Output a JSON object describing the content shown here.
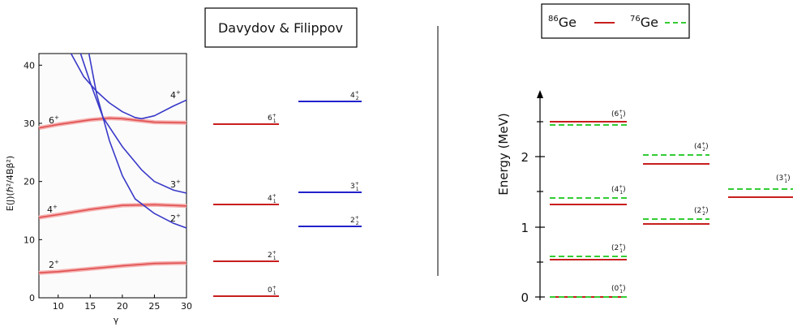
{
  "left_panel": {
    "title": "Davydov & Filippov",
    "y_axis_label": "E(J)(ℏ²/4Bβ²)",
    "x_axis_label": "γ",
    "y_ticks": [
      "0",
      "10",
      "20",
      "30",
      "40"
    ],
    "x_ticks": [
      "10",
      "15",
      "20",
      "25",
      "30"
    ],
    "curve_labels": {
      "c2": {
        "base": "2",
        "sup": "+"
      },
      "c4": {
        "base": "4",
        "sup": "+"
      },
      "c6": {
        "base": "6",
        "sup": "+"
      },
      "c3": {
        "base": "3",
        "sup": "+"
      },
      "c2b": {
        "base": "2",
        "sup": "+"
      },
      "c4b": {
        "base": "4",
        "sup": "+"
      }
    },
    "chart_data": {
      "type": "line",
      "xlim": [
        7,
        30
      ],
      "ylim": [
        0,
        42
      ],
      "series": [
        {
          "color": "#e05050",
          "x": [
            7,
            10,
            15,
            20,
            25,
            30
          ],
          "y": [
            4.3,
            4.5,
            5.0,
            5.5,
            5.9,
            6.0
          ]
        },
        {
          "color": "#e05050",
          "x": [
            7,
            10,
            15,
            20,
            25,
            30
          ],
          "y": [
            13.8,
            14.3,
            15.2,
            15.9,
            16.0,
            15.8
          ]
        },
        {
          "color": "#e05050",
          "x": [
            7,
            10,
            15,
            18,
            20,
            25,
            30
          ],
          "y": [
            29.2,
            29.8,
            30.6,
            30.9,
            30.8,
            30.2,
            30.1
          ]
        },
        {
          "color": "#3838c8",
          "x": [
            13.5,
            15,
            17,
            20,
            23,
            25,
            28,
            30
          ],
          "y": [
            42,
            37,
            31,
            26,
            22,
            20,
            18.5,
            18
          ]
        },
        {
          "color": "#3838c8",
          "x": [
            14.8,
            16,
            18,
            20,
            22,
            25,
            28,
            30
          ],
          "y": [
            42,
            35,
            27,
            21,
            17,
            14.5,
            12.8,
            12
          ]
        },
        {
          "color": "#3838c8",
          "x": [
            12,
            14,
            16,
            18,
            20,
            22,
            23,
            25,
            28,
            30
          ],
          "y": [
            42,
            38,
            35.5,
            33.5,
            32,
            31,
            30.8,
            31.3,
            33,
            34
          ]
        }
      ]
    }
  },
  "right_panel": {
    "legend": {
      "item1": {
        "sup": "86",
        "text": "Ge"
      },
      "item2": {
        "sup": "76",
        "text": "Ge"
      }
    },
    "y_axis_label": "Energy (MeV)",
    "y_ticks": [
      "0",
      "1",
      "2"
    ]
  },
  "levels_left": {
    "l0": {
      "base": "0",
      "sup": "+",
      "sub": "1"
    },
    "l2": {
      "base": "2",
      "sup": "+",
      "sub": "1"
    },
    "l4": {
      "base": "4",
      "sup": "+",
      "sub": "1"
    },
    "l6": {
      "base": "6",
      "sup": "+",
      "sub": "1"
    },
    "l2g": {
      "base": "2",
      "sup": "+",
      "sub": "2"
    },
    "l3g": {
      "base": "3",
      "sup": "+",
      "sub": "1"
    },
    "l4g": {
      "base": "4",
      "sup": "+",
      "sub": "2"
    }
  },
  "levels_right": {
    "r0": {
      "base": "(0",
      "sup": "+",
      "sub": "1",
      "close": ")"
    },
    "r2": {
      "base": "(2",
      "sup": "+",
      "sub": "1",
      "close": ")"
    },
    "r4": {
      "base": "(4",
      "sup": "+",
      "sub": "1",
      "close": ")"
    },
    "r6": {
      "base": "(6",
      "sup": "+",
      "sub": "1",
      "close": ")"
    },
    "r2g": {
      "base": "(2",
      "sup": "+",
      "sub": "2",
      "close": ")"
    },
    "r4g": {
      "base": "(4",
      "sup": "+",
      "sub": "2",
      "close": ")"
    },
    "r3g": {
      "base": "(3",
      "sup": "+",
      "sub": "1",
      "close": ")"
    }
  },
  "colors": {
    "red": "#c81e1e",
    "green": "#33cc33",
    "blue": "#2222cc",
    "curve_red": "#e05050",
    "curve_blue": "#3838c8"
  }
}
